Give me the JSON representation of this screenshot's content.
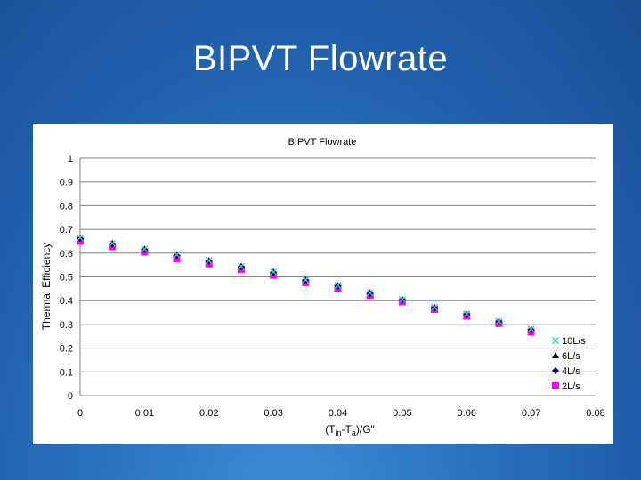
{
  "slide": {
    "title": "BIPVT Flowrate"
  },
  "chart_data": {
    "type": "scatter",
    "title": "BIPVT Flowrate",
    "ylabel": "Thermal Efficiency",
    "xlabel": "(Tin-Ta)/G\"",
    "xlabel_parts": [
      "(T",
      "in",
      "-T",
      "a",
      ")/G\""
    ],
    "xlim": [
      0,
      0.08
    ],
    "ylim": [
      0,
      1
    ],
    "xticks": [
      0,
      0.01,
      0.02,
      0.03,
      0.04,
      0.05,
      0.06,
      0.07,
      0.08
    ],
    "xtick_labels": [
      "0",
      "0.01",
      "0.02",
      "0.03",
      "0.04",
      "0.05",
      "0.06",
      "0.07",
      "0.08"
    ],
    "yticks": [
      0,
      0.1,
      0.2,
      0.3,
      0.4,
      0.5,
      0.6,
      0.7,
      0.8,
      0.9,
      1
    ],
    "ytick_labels": [
      "0",
      "0.1",
      "0.2",
      "0.3",
      "0.4",
      "0.5",
      "0.6",
      "0.7",
      "0.8",
      "0.9",
      "1"
    ],
    "grid": "horizontal",
    "legend_position": "bottom-right",
    "x": [
      0,
      0.005,
      0.01,
      0.015,
      0.02,
      0.025,
      0.03,
      0.035,
      0.04,
      0.045,
      0.05,
      0.055,
      0.06,
      0.065,
      0.07
    ],
    "series": [
      {
        "name": "10L/s",
        "marker": "x",
        "color": "#33cccc",
        "values": [
          0.665,
          0.641,
          0.617,
          0.593,
          0.569,
          0.545,
          0.521,
          0.488,
          0.464,
          0.433,
          0.405,
          0.372,
          0.344,
          0.313,
          0.28
        ]
      },
      {
        "name": "6L/s",
        "marker": "triangle",
        "color": "#000000",
        "values": [
          0.665,
          0.641,
          0.617,
          0.593,
          0.569,
          0.545,
          0.521,
          0.488,
          0.464,
          0.433,
          0.405,
          0.372,
          0.344,
          0.313,
          0.28
        ]
      },
      {
        "name": "4L/s",
        "marker": "diamond",
        "color": "#000080",
        "values": [
          0.662,
          0.638,
          0.614,
          0.59,
          0.566,
          0.542,
          0.518,
          0.485,
          0.461,
          0.43,
          0.402,
          0.369,
          0.341,
          0.31,
          0.277
        ]
      },
      {
        "name": "2L/s",
        "marker": "square",
        "color": "#ff00ff",
        "values": [
          0.65,
          0.627,
          0.605,
          0.577,
          0.555,
          0.532,
          0.507,
          0.476,
          0.452,
          0.422,
          0.395,
          0.363,
          0.335,
          0.304,
          0.268
        ]
      }
    ]
  }
}
